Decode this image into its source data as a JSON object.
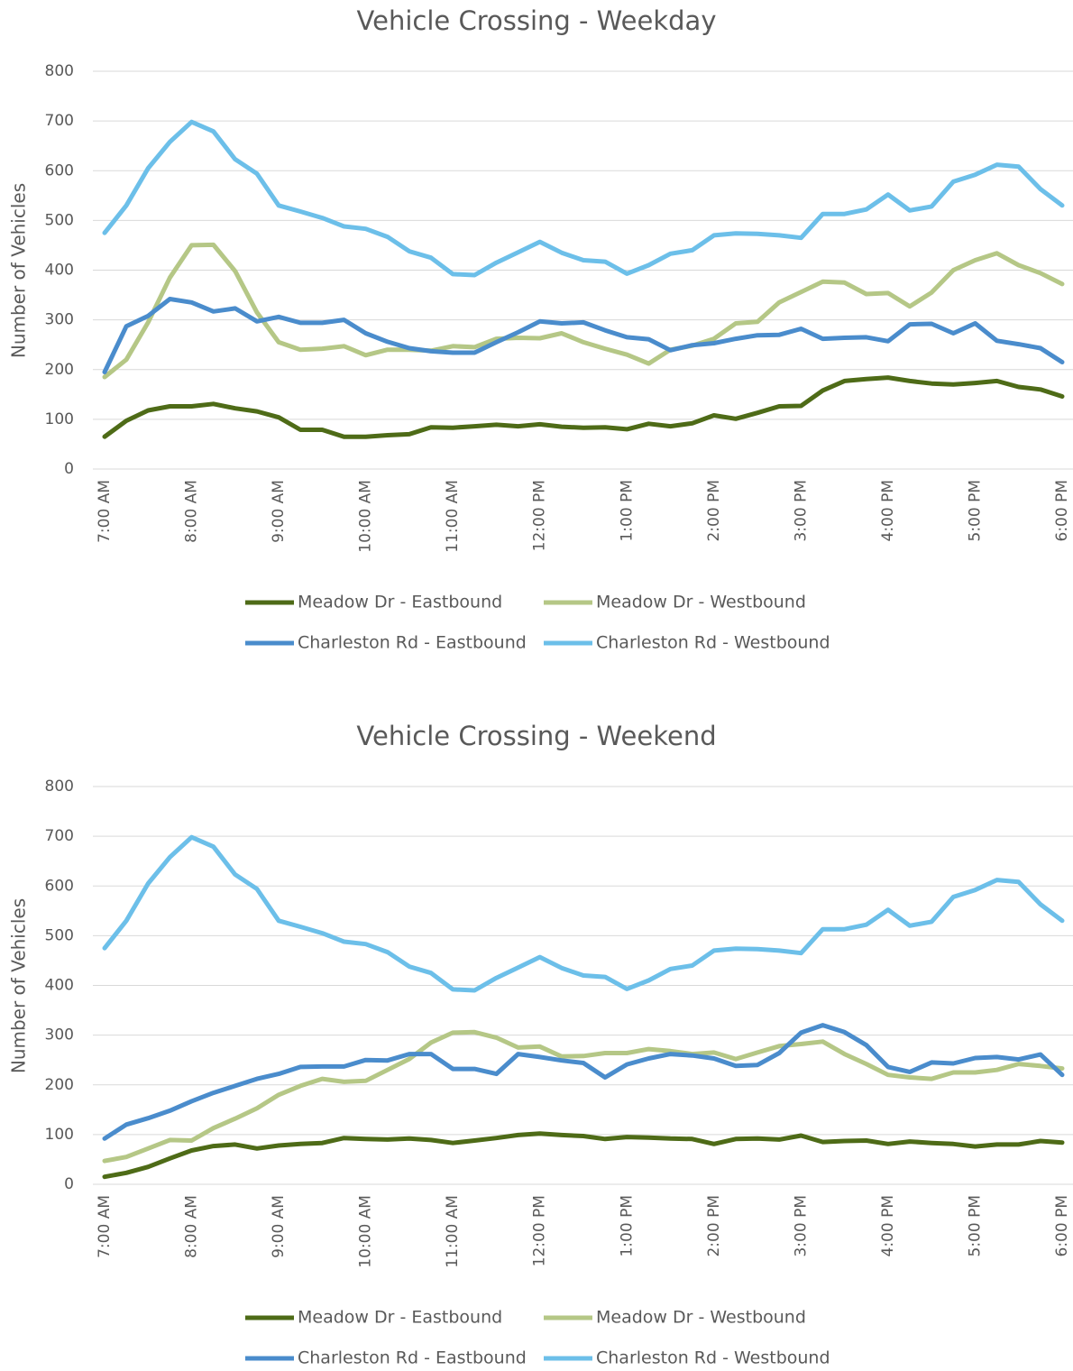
{
  "chart_data": [
    {
      "type": "line",
      "title": "Vehicle Crossing - Weekday",
      "y_label": "Number of Vehicles",
      "categories": [
        "7:00 AM",
        null,
        null,
        null,
        "8:00 AM",
        null,
        null,
        null,
        "9:00 AM",
        null,
        null,
        null,
        "10:00 AM",
        null,
        null,
        null,
        "11:00 AM",
        null,
        null,
        null,
        "12:00 PM",
        null,
        null,
        null,
        "1:00 PM",
        null,
        null,
        null,
        "2:00 PM",
        null,
        null,
        null,
        "3:00 PM",
        null,
        null,
        null,
        "4:00 PM",
        null,
        null,
        null,
        "5:00 PM",
        null,
        null,
        null,
        "6:00 PM"
      ],
      "series": [
        {
          "name": "Meadow Dr - Eastbound",
          "color": "#4e6b17",
          "values": [
            65,
            97,
            118,
            126,
            126,
            131,
            122,
            116,
            104,
            79,
            79,
            65,
            65,
            68,
            70,
            84,
            83,
            86,
            89,
            86,
            90,
            85,
            83,
            84,
            80,
            91,
            86,
            92,
            108,
            101,
            113,
            126,
            127,
            158,
            177,
            181,
            184,
            177,
            172,
            170,
            173,
            177,
            165,
            160,
            146
          ]
        },
        {
          "name": "Meadow Dr - Westbound",
          "color": "#b5c786",
          "values": [
            185,
            220,
            295,
            385,
            450,
            451,
            398,
            315,
            255,
            240,
            242,
            247,
            229,
            240,
            240,
            238,
            247,
            245,
            262,
            264,
            263,
            273,
            255,
            242,
            230,
            212,
            240,
            248,
            262,
            293,
            296,
            335,
            356,
            377,
            375,
            352,
            354,
            327,
            355,
            400,
            420,
            434,
            410,
            394,
            372
          ]
        },
        {
          "name": "Charleston Rd - Eastbound",
          "color": "#4a8ccc",
          "values": [
            195,
            287,
            308,
            342,
            335,
            317,
            323,
            297,
            306,
            294,
            294,
            300,
            273,
            256,
            243,
            237,
            234,
            234,
            255,
            275,
            297,
            293,
            295,
            279,
            265,
            261,
            239,
            249,
            253,
            262,
            269,
            270,
            282,
            262,
            264,
            265,
            257,
            291,
            292,
            273,
            293,
            258,
            251,
            243,
            215
          ]
        },
        {
          "name": "Charleston Rd - Westbound",
          "color": "#6cbfe9",
          "values": [
            475,
            530,
            605,
            658,
            698,
            679,
            623,
            594,
            530,
            518,
            505,
            488,
            483,
            467,
            438,
            425,
            392,
            390,
            415,
            436,
            457,
            435,
            420,
            417,
            393,
            410,
            433,
            440,
            470,
            474,
            473,
            470,
            465,
            513,
            513,
            522,
            552,
            520,
            528,
            578,
            592,
            612,
            608,
            563,
            530
          ]
        }
      ],
      "ylim": [
        0,
        800
      ],
      "yticks": [
        0,
        100,
        200,
        300,
        400,
        500,
        600,
        700,
        800
      ],
      "grid": true
    },
    {
      "type": "line",
      "title": "Vehicle Crossing - Weekend",
      "y_label": "Number of Vehicles",
      "categories": [
        "7:00 AM",
        null,
        null,
        null,
        "8:00 AM",
        null,
        null,
        null,
        "9:00 AM",
        null,
        null,
        null,
        "10:00 AM",
        null,
        null,
        null,
        "11:00 AM",
        null,
        null,
        null,
        "12:00 PM",
        null,
        null,
        null,
        "1:00 PM",
        null,
        null,
        null,
        "2:00 PM",
        null,
        null,
        null,
        "3:00 PM",
        null,
        null,
        null,
        "4:00 PM",
        null,
        null,
        null,
        "5:00 PM",
        null,
        null,
        null,
        "6:00 PM"
      ],
      "series": [
        {
          "name": "Meadow Dr - Eastbound",
          "color": "#4e6b17",
          "values": [
            15,
            23,
            35,
            52,
            68,
            77,
            80,
            72,
            78,
            81,
            83,
            93,
            91,
            90,
            92,
            89,
            83,
            88,
            93,
            99,
            102,
            99,
            97,
            91,
            95,
            94,
            92,
            91,
            81,
            91,
            92,
            90,
            98,
            85,
            87,
            88,
            81,
            86,
            83,
            81,
            76,
            80,
            80,
            87,
            84
          ]
        },
        {
          "name": "Meadow Dr - Westbound",
          "color": "#b5c786",
          "values": [
            47,
            55,
            72,
            89,
            88,
            113,
            132,
            153,
            180,
            198,
            212,
            206,
            208,
            230,
            252,
            285,
            305,
            306,
            295,
            275,
            277,
            257,
            258,
            264,
            264,
            272,
            268,
            262,
            265,
            252,
            265,
            278,
            282,
            287,
            262,
            242,
            220,
            215,
            212,
            225,
            225,
            230,
            242,
            238,
            233
          ]
        },
        {
          "name": "Charleston Rd - Eastbound",
          "color": "#4a8ccc",
          "values": [
            92,
            120,
            133,
            148,
            167,
            184,
            198,
            212,
            222,
            236,
            237,
            237,
            250,
            249,
            262,
            262,
            232,
            232,
            222,
            262,
            256,
            249,
            244,
            215,
            241,
            253,
            262,
            259,
            253,
            238,
            240,
            264,
            305,
            320,
            306,
            280,
            236,
            226,
            245,
            243,
            254,
            256,
            251,
            261,
            220
          ]
        },
        {
          "name": "Charleston Rd - Westbound",
          "color": "#6cbfe9",
          "values": [
            475,
            530,
            605,
            658,
            698,
            679,
            623,
            594,
            530,
            518,
            505,
            488,
            483,
            467,
            438,
            425,
            392,
            390,
            415,
            436,
            457,
            435,
            420,
            417,
            393,
            410,
            433,
            440,
            470,
            474,
            473,
            470,
            465,
            513,
            513,
            522,
            552,
            520,
            528,
            578,
            592,
            612,
            608,
            563,
            530
          ]
        }
      ],
      "ylim": [
        0,
        800
      ],
      "yticks": [
        0,
        100,
        200,
        300,
        400,
        500,
        600,
        700,
        800
      ],
      "grid": true
    }
  ]
}
